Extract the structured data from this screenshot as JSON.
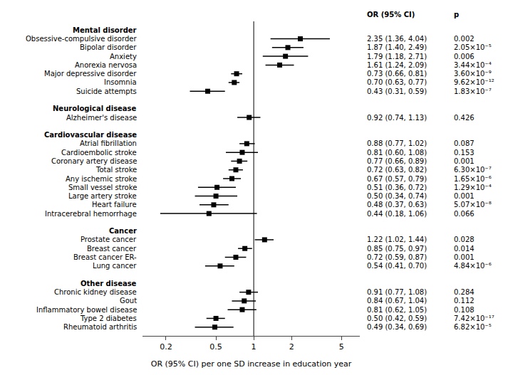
{
  "chart_data": {
    "type": "forest",
    "xlabel": "OR (95% CI) per one SD increase in education year",
    "column_headers": [
      "OR (95% CI)",
      "p"
    ],
    "categories": [
      "Mental disorder",
      "Obsessive-compulsive disorder",
      "Bipolar disorder",
      "Anxiety",
      "Anorexia nervosa",
      "Major depressive disorder",
      "Insomnia",
      "Suicide attempts",
      null,
      "Neurological disease",
      "Alzheimer's disease",
      null,
      "Cardiovascular disease",
      "Atrial fibrillation",
      "Cardioembolic stroke",
      "Coronary artery disease",
      "Total stroke",
      "Any ischemic stroke",
      "Small vessel stroke",
      "Large artery stroke",
      "Heart failure",
      "Intracerebral hemorrhage",
      null,
      "Cancer",
      "Prostate cancer",
      "Breast cancer",
      "Breast cancer ER-",
      "Lung cancer",
      null,
      "Other disease",
      "Chronic kidney disease",
      "Gout",
      "Inflammatory bowel disease",
      "Type 2 diabetes",
      "Rheumatoid arthritis"
    ],
    "values": [
      null,
      2.35,
      1.87,
      1.79,
      1.61,
      0.73,
      0.7,
      0.43,
      null,
      null,
      0.92,
      null,
      null,
      0.88,
      0.81,
      0.77,
      0.72,
      0.67,
      0.51,
      0.5,
      0.48,
      0.44,
      null,
      null,
      1.22,
      0.85,
      0.72,
      0.54,
      null,
      null,
      0.91,
      0.84,
      0.81,
      0.5,
      0.49
    ],
    "ci_low": [
      null,
      1.36,
      1.4,
      1.18,
      1.24,
      0.66,
      0.63,
      0.31,
      null,
      null,
      0.74,
      null,
      null,
      0.77,
      0.6,
      0.66,
      0.63,
      0.57,
      0.36,
      0.34,
      0.37,
      0.18,
      null,
      null,
      1.02,
      0.75,
      0.59,
      0.41,
      null,
      null,
      0.77,
      0.67,
      0.62,
      0.42,
      0.34
    ],
    "ci_high": [
      null,
      4.04,
      2.49,
      2.71,
      2.09,
      0.81,
      0.77,
      0.59,
      null,
      null,
      1.13,
      null,
      null,
      1.02,
      1.08,
      0.89,
      0.82,
      0.79,
      0.72,
      0.74,
      0.63,
      1.06,
      null,
      null,
      1.44,
      0.97,
      0.87,
      0.7,
      null,
      null,
      1.08,
      1.04,
      1.05,
      0.59,
      0.69
    ],
    "ci_labels": [
      null,
      "2.35 (1.36, 4.04)",
      "1.87 (1.40, 2.49)",
      "1.79 (1.18, 2.71)",
      "1.61 (1.24, 2.09)",
      "0.73 (0.66, 0.81)",
      "0.70 (0.63, 0.77)",
      "0.43 (0.31, 0.59)",
      null,
      null,
      "0.92 (0.74, 1.13)",
      null,
      null,
      "0.88 (0.77, 1.02)",
      "0.81 (0.60, 1.08)",
      "0.77 (0.66, 0.89)",
      "0.72 (0.63, 0.82)",
      "0.67 (0.57, 0.79)",
      "0.51 (0.36, 0.72)",
      "0.50 (0.34, 0.74)",
      "0.48 (0.37, 0.63)",
      "0.44 (0.18, 1.06)",
      null,
      null,
      "1.22 (1.02, 1.44)",
      "0.85 (0.75, 0.97)",
      "0.72 (0.59, 0.87)",
      "0.54 (0.41, 0.70)",
      null,
      null,
      "0.91 (0.77, 1.08)",
      "0.84 (0.67, 1.04)",
      "0.81 (0.62, 1.05)",
      "0.50 (0.42, 0.59)",
      "0.49 (0.34, 0.69)"
    ],
    "p_labels": [
      null,
      "0.002",
      "2.05×10⁻⁵",
      "0.006",
      "3.44×10⁻⁴",
      "3.60×10⁻⁹",
      "9.62×10⁻¹²",
      "1.83×10⁻⁷",
      null,
      null,
      "0.426",
      null,
      null,
      "0.087",
      "0.153",
      "0.001",
      "6.30×10⁻⁷",
      "1.65×10⁻⁶",
      "1.29×10⁻⁴",
      "0.001",
      "5.07×10⁻⁸",
      "0.066",
      null,
      null,
      "0.028",
      "0.014",
      "0.001",
      "4.84×10⁻⁶",
      null,
      null,
      "0.284",
      "0.112",
      "0.108",
      "7.42×10⁻¹⁷",
      "6.82×10⁻⁵"
    ],
    "reference_line": 1,
    "xlim": [
      0.13,
      7.0
    ],
    "xticks": [
      0.2,
      0.5,
      1,
      2,
      5
    ],
    "log": "x",
    "grid": false,
    "tick_labels": "x",
    "color": "#000000"
  }
}
